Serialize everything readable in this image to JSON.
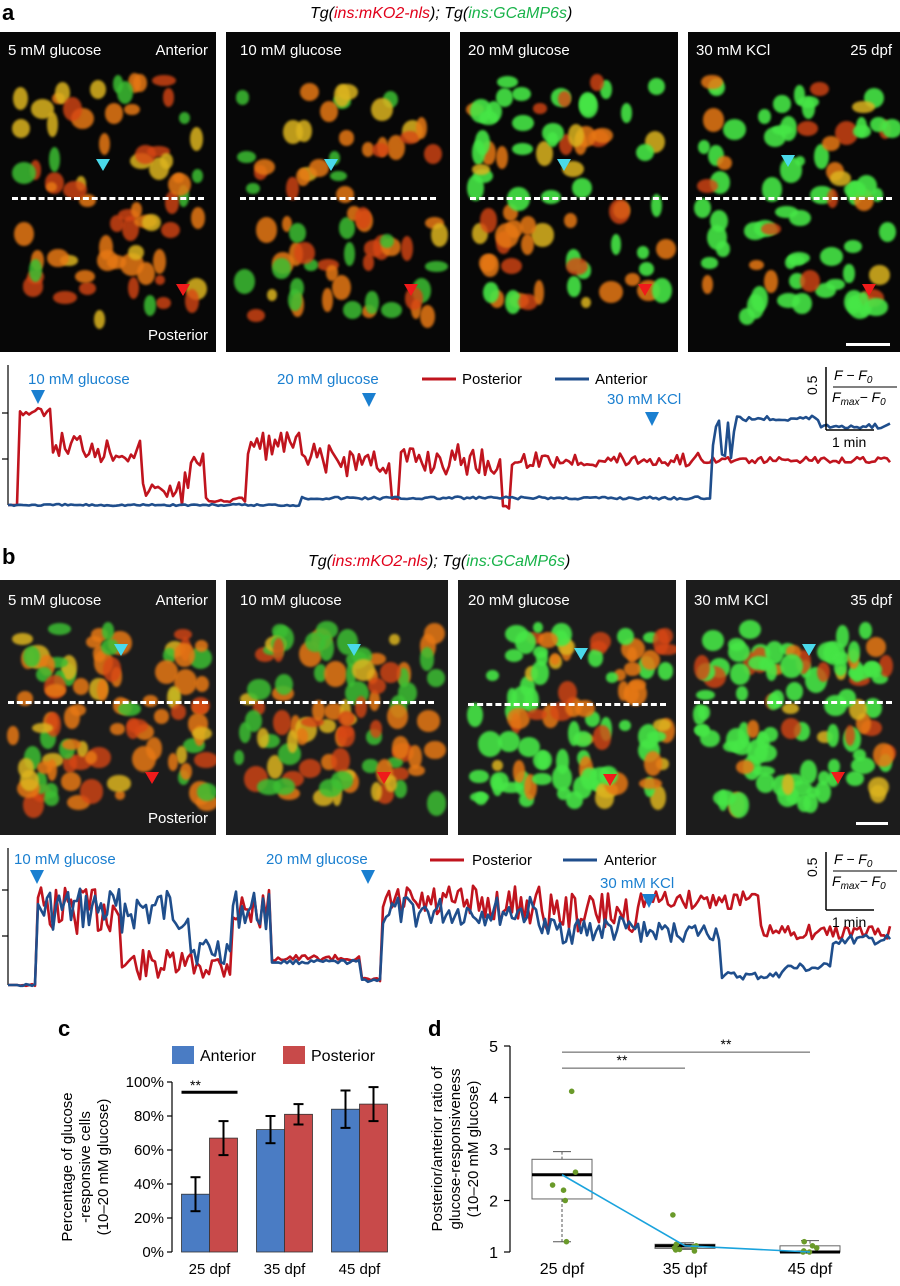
{
  "panel_a": {
    "letter": "a",
    "genotype": {
      "pre": "Tg(",
      "red": "ins:mKO2-nls",
      "mid": "); Tg(",
      "green": "ins:GCaMP6s",
      "post": ")"
    },
    "frames": [
      {
        "label": "5 mM glucose",
        "extra": "Anterior",
        "bottom": "Posterior"
      },
      {
        "label": "10 mM glucose",
        "extra": "",
        "bottom": ""
      },
      {
        "label": "20 mM glucose",
        "extra": "",
        "bottom": ""
      },
      {
        "label": "30 mM KCl",
        "extra": "25 dpf",
        "bottom": ""
      }
    ],
    "trace": {
      "stimuli": [
        "10 mM glucose",
        "20 mM glucose",
        "30 mM KCl"
      ],
      "legend": [
        "Posterior",
        "Anterior"
      ],
      "scale_value": "0.5",
      "scale_num": "F − F",
      "scale_den_a": "F",
      "scale_den_b": "max",
      "scale_den_c": "− F",
      "scale_sub": "0",
      "scale_time": "1 min"
    }
  },
  "panel_b": {
    "letter": "b",
    "genotype": {
      "pre": "Tg(",
      "red": "ins:mKO2-nls",
      "mid": "); Tg(",
      "green": "ins:GCaMP6s",
      "post": ")"
    },
    "frames": [
      {
        "label": "5 mM glucose",
        "extra": "Anterior",
        "bottom": "Posterior"
      },
      {
        "label": "10 mM glucose",
        "extra": "",
        "bottom": ""
      },
      {
        "label": "20 mM glucose",
        "extra": "",
        "bottom": ""
      },
      {
        "label": "30 mM KCl",
        "extra": "35 dpf",
        "bottom": ""
      }
    ],
    "trace": {
      "stimuli": [
        "10 mM glucose",
        "20 mM glucose",
        "30 mM KCl"
      ],
      "legend": [
        "Posterior",
        "Anterior"
      ],
      "scale_value": "0.5",
      "scale_num": "F − F",
      "scale_den_a": "F",
      "scale_den_b": "max",
      "scale_den_c": "− F",
      "scale_sub": "0",
      "scale_time": "1 min"
    }
  },
  "panel_c": {
    "letter": "c"
  },
  "panel_d": {
    "letter": "d"
  },
  "colors": {
    "posterior": "#c0141e",
    "anterior": "#1f4e8c",
    "bar_anterior": "#4a7cc4",
    "bar_posterior": "#c84a4a",
    "stim": "#1a7fd0",
    "trend": "#1aa3dd",
    "dot": "#6a9a2a"
  },
  "chart_data": [
    {
      "type": "bar",
      "ylabel": "Percentage of glucose -responsive cells (10–20 mM glucose)",
      "xlabel": "",
      "categories": [
        "25 dpf",
        "35 dpf",
        "45 dpf"
      ],
      "series": [
        {
          "name": "Anterior",
          "values": [
            34,
            72,
            84
          ],
          "errors": [
            10,
            8,
            11
          ]
        },
        {
          "name": "Posterior",
          "values": [
            67,
            81,
            87
          ],
          "errors": [
            10,
            6,
            10
          ]
        }
      ],
      "ylim": [
        0,
        100
      ],
      "yticks": [
        "0%",
        "20%",
        "40%",
        "60%",
        "80%",
        "100%"
      ],
      "annotations": [
        {
          "text": "**",
          "between": [
            "Anterior",
            "Posterior"
          ],
          "category": "25 dpf"
        }
      ],
      "legend": "top"
    },
    {
      "type": "box",
      "ylabel": "Posterior/anterior ratio of glucose-responsiveness (10–20 mM glucose)",
      "xlabel": "",
      "categories": [
        "25 dpf",
        "35 dpf",
        "45 dpf"
      ],
      "ylim": [
        1,
        5
      ],
      "yticks": [
        "1",
        "2",
        "3",
        "4",
        "5"
      ],
      "boxes": [
        {
          "min": 1.2,
          "q1": 2.03,
          "median": 2.5,
          "q3": 2.8,
          "max": 2.95,
          "points": [
            4.12,
            2.55,
            2.3,
            2.2,
            2.0,
            1.2
          ]
        },
        {
          "min": 1.05,
          "q1": 1.07,
          "median": 1.12,
          "q3": 1.15,
          "max": 1.18,
          "points": [
            1.72,
            1.15,
            1.12,
            1.1,
            1.08,
            1.05,
            1.04,
            1.02
          ]
        },
        {
          "min": 1.0,
          "q1": 1.0,
          "median": 1.0,
          "q3": 1.12,
          "max": 1.22,
          "points": [
            1.2,
            1.12,
            1.08,
            1.02,
            1.0,
            1.0
          ]
        }
      ],
      "trend": [
        2.5,
        1.12,
        1.0
      ],
      "annotations": [
        {
          "text": "**",
          "from": "25 dpf",
          "to": "35 dpf"
        },
        {
          "text": "**",
          "from": "25 dpf",
          "to": "45 dpf"
        }
      ]
    }
  ]
}
